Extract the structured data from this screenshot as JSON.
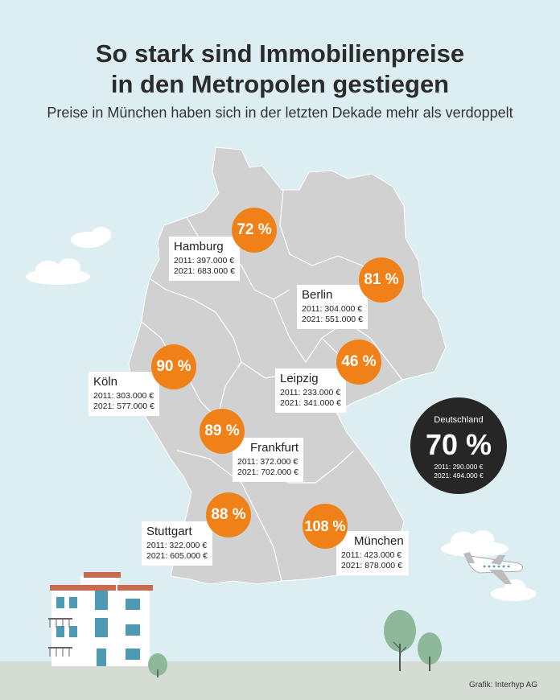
{
  "title_line1": "So stark sind Immobilienpreise",
  "title_line2": "in den Metropolen gestiegen",
  "subtitle": "Preise in München haben sich in der letzten Dekade mehr als verdoppelt",
  "colors": {
    "accent": "#f08118",
    "map": "#d1d1d1",
    "background": "#dceef2",
    "dark": "#262626"
  },
  "cities": [
    {
      "name": "Hamburg",
      "percent": "72 %",
      "p2011": "2011: 397.000 €",
      "p2021": "2021: 683.000 €"
    },
    {
      "name": "Berlin",
      "percent": "81 %",
      "p2011": "2011: 304.000 €",
      "p2021": "2021: 551.000 €"
    },
    {
      "name": "Köln",
      "percent": "90 %",
      "p2011": "2011: 303.000 €",
      "p2021": "2021: 577.000 €"
    },
    {
      "name": "Leipzig",
      "percent": "46 %",
      "p2011": "2011: 233.000 €",
      "p2021": "2021: 341.000 €"
    },
    {
      "name": "Frankfurt",
      "percent": "89 %",
      "p2011": "2011: 372.000 €",
      "p2021": "2021: 702.000 €"
    },
    {
      "name": "Stuttgart",
      "percent": "88 %",
      "p2011": "2011: 322.000 €",
      "p2021": "2021: 605.000 €"
    },
    {
      "name": "München",
      "percent": "108 %",
      "p2011": "2011: 423.000 €",
      "p2021": "2021: 878.000 €"
    }
  ],
  "germany": {
    "label": "Deutschland",
    "percent": "70 %",
    "p2011": "2011: 290.000 €",
    "p2021": "2021: 494.000 €"
  },
  "credit": "Grafik: Interhyp AG",
  "icons": [
    "cloud-icon",
    "airplane-icon",
    "house-icon",
    "tree-icon",
    "bush-icon",
    "germany-map"
  ]
}
